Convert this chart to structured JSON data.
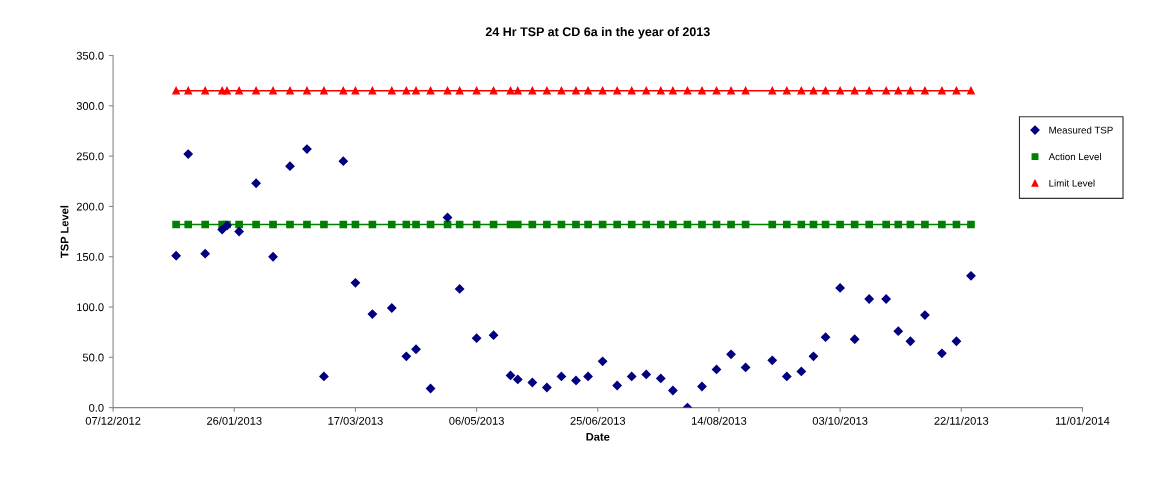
{
  "chart_data": {
    "type": "line",
    "title": "24 Hr TSP at CD 6a in the year of 2013",
    "xlabel": "Date",
    "ylabel": "TSP Level",
    "x": [
      "2013-01-02",
      "2013-01-07",
      "2013-01-14",
      "2013-01-21",
      "2013-01-23",
      "2013-01-28",
      "2013-02-04",
      "2013-02-11",
      "2013-02-18",
      "2013-02-25",
      "2013-03-04",
      "2013-03-12",
      "2013-03-17",
      "2013-03-24",
      "2013-04-01",
      "2013-04-07",
      "2013-04-11",
      "2013-04-17",
      "2013-04-24",
      "2013-04-29",
      "2013-05-06",
      "2013-05-13",
      "2013-05-20",
      "2013-05-23",
      "2013-05-29",
      "2013-06-04",
      "2013-06-10",
      "2013-06-16",
      "2013-06-21",
      "2013-06-27",
      "2013-07-03",
      "2013-07-09",
      "2013-07-15",
      "2013-07-21",
      "2013-07-26",
      "2013-08-01",
      "2013-08-07",
      "2013-08-13",
      "2013-08-19",
      "2013-08-25",
      "2013-09-05",
      "2013-09-11",
      "2013-09-17",
      "2013-09-22",
      "2013-09-27",
      "2013-10-03",
      "2013-10-09",
      "2013-10-15",
      "2013-10-22",
      "2013-10-27",
      "2013-11-01",
      "2013-11-07",
      "2013-11-14",
      "2013-11-20",
      "2013-11-26"
    ],
    "series": [
      {
        "name": "Measured TSP",
        "type": "scatter",
        "marker": "diamond",
        "color": "#000080",
        "values": [
          151,
          252,
          153,
          177,
          181,
          175,
          223,
          150,
          240,
          257,
          31,
          245,
          124,
          93,
          99,
          51,
          58,
          19,
          189,
          118,
          69,
          72,
          32,
          28,
          25,
          20,
          31,
          27,
          31,
          46,
          22,
          31,
          33,
          29,
          17,
          0,
          21,
          38,
          53,
          40,
          47,
          31,
          36,
          51,
          70,
          119,
          68,
          108,
          108,
          76,
          66,
          92,
          54,
          66,
          131
        ]
      },
      {
        "name": "Action Level",
        "marker": "square",
        "color": "#008000",
        "values": [
          182,
          182,
          182,
          182,
          182,
          182,
          182,
          182,
          182,
          182,
          182,
          182,
          182,
          182,
          182,
          182,
          182,
          182,
          182,
          182,
          182,
          182,
          182,
          182,
          182,
          182,
          182,
          182,
          182,
          182,
          182,
          182,
          182,
          182,
          182,
          182,
          182,
          182,
          182,
          182,
          182,
          182,
          182,
          182,
          182,
          182,
          182,
          182,
          182,
          182,
          182,
          182,
          182,
          182,
          182
        ]
      },
      {
        "name": "Limit Level",
        "marker": "triangle",
        "color": "#ff0000",
        "values": [
          315,
          315,
          315,
          315,
          315,
          315,
          315,
          315,
          315,
          315,
          315,
          315,
          315,
          315,
          315,
          315,
          315,
          315,
          315,
          315,
          315,
          315,
          315,
          315,
          315,
          315,
          315,
          315,
          315,
          315,
          315,
          315,
          315,
          315,
          315,
          315,
          315,
          315,
          315,
          315,
          315,
          315,
          315,
          315,
          315,
          315,
          315,
          315,
          315,
          315,
          315,
          315,
          315,
          315,
          315
        ]
      }
    ],
    "xlim": [
      "2012-12-07",
      "2014-01-11"
    ],
    "xticks": [
      {
        "value": "2012-12-07",
        "label": "07/12/2012"
      },
      {
        "value": "2013-01-26",
        "label": "26/01/2013"
      },
      {
        "value": "2013-03-17",
        "label": "17/03/2013"
      },
      {
        "value": "2013-05-06",
        "label": "06/05/2013"
      },
      {
        "value": "2013-06-25",
        "label": "25/06/2013"
      },
      {
        "value": "2013-08-14",
        "label": "14/08/2013"
      },
      {
        "value": "2013-10-03",
        "label": "03/10/2013"
      },
      {
        "value": "2013-11-22",
        "label": "22/11/2013"
      },
      {
        "value": "2014-01-11",
        "label": "11/01/2014"
      }
    ],
    "ylim": [
      0,
      350
    ],
    "yticks": [
      {
        "value": 0,
        "label": "0.0"
      },
      {
        "value": 50,
        "label": "50.0"
      },
      {
        "value": 100,
        "label": "100.0"
      },
      {
        "value": 150,
        "label": "150.0"
      },
      {
        "value": 200,
        "label": "200.0"
      },
      {
        "value": 250,
        "label": "250.0"
      },
      {
        "value": 300,
        "label": "300.0"
      },
      {
        "value": 350,
        "label": "350.0"
      }
    ],
    "grid": false,
    "legend": "right"
  }
}
